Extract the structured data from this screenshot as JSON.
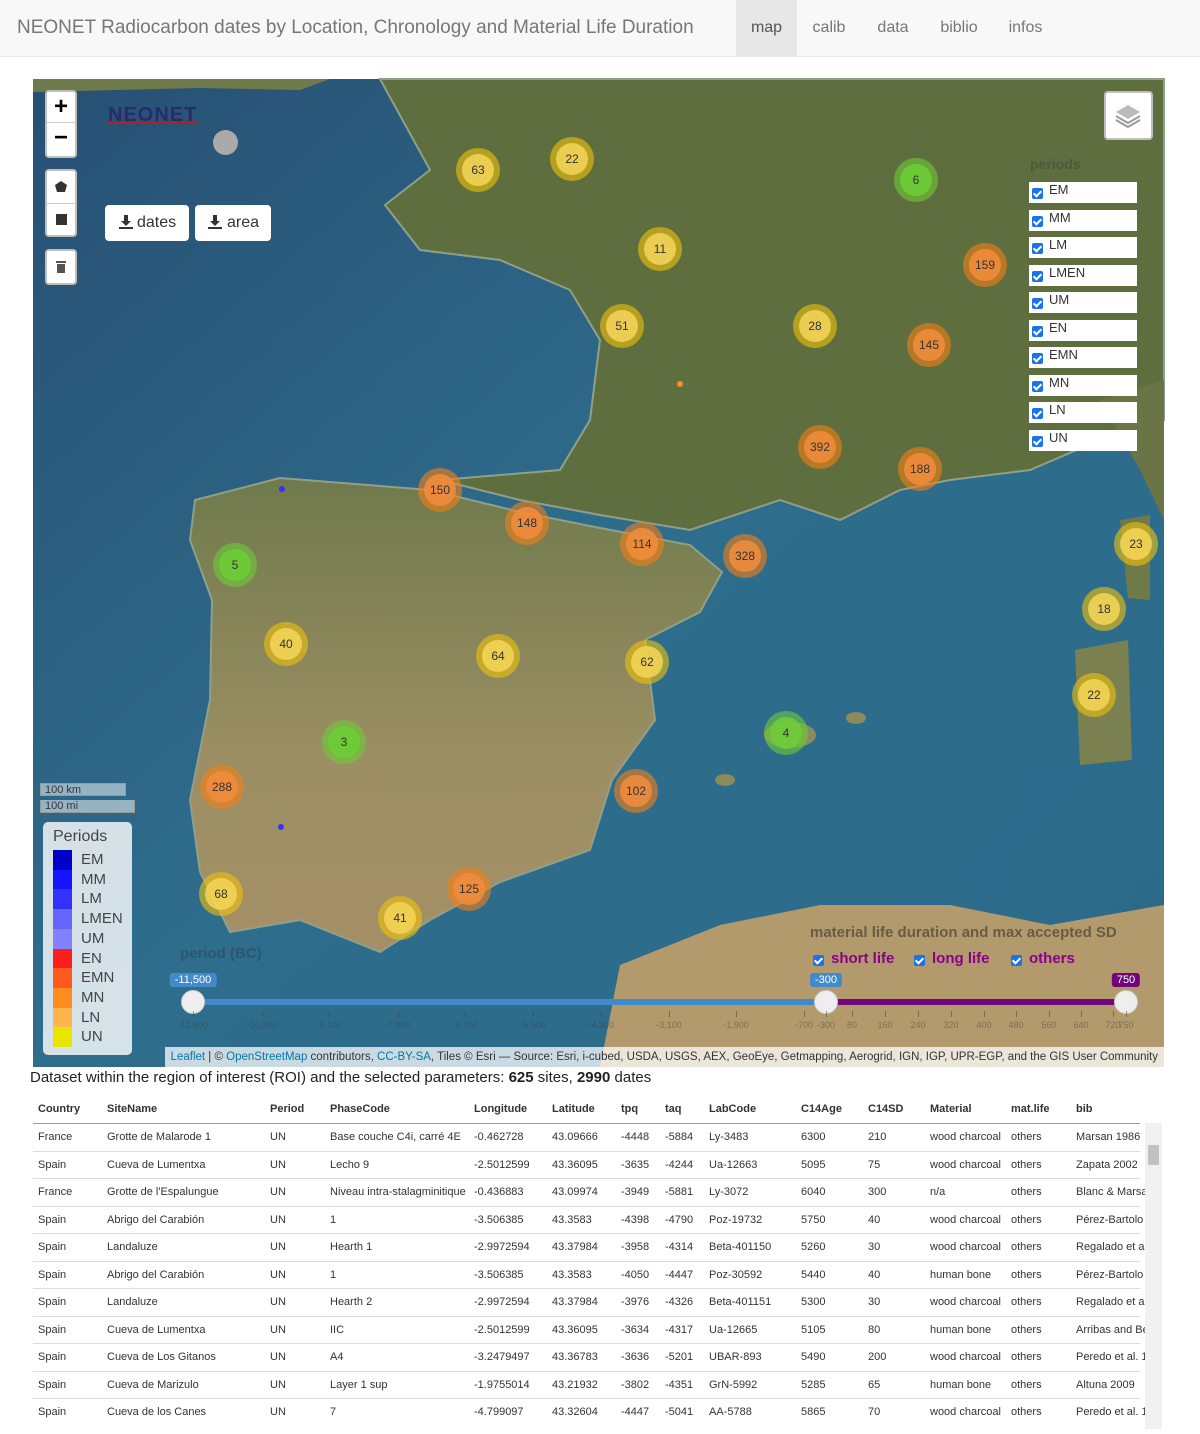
{
  "navbar": {
    "title": "NEONET Radiocarbon dates by Location, Chronology and Material Life Duration",
    "tabs": [
      "map",
      "calib",
      "data",
      "biblio",
      "infos"
    ]
  },
  "map": {
    "zoom_in": "+",
    "zoom_out": "−",
    "logo": "NEONET",
    "export_buttons": [
      "dates",
      "area"
    ],
    "clusters": [
      63,
      22,
      6,
      11,
      159,
      51,
      28,
      145,
      392,
      188,
      150,
      148,
      114,
      328,
      23,
      5,
      18,
      40,
      64,
      62,
      22,
      4,
      3,
      288,
      102,
      125,
      68,
      41
    ],
    "periods_filter": {
      "title": "periods",
      "items": [
        "EM",
        "MM",
        "LM",
        "LMEN",
        "UM",
        "EN",
        "EMN",
        "MN",
        "LN",
        "UN"
      ]
    },
    "legend": {
      "title": "Periods",
      "items": [
        {
          "label": "EM",
          "color": "#0000c8"
        },
        {
          "label": "MM",
          "color": "#1414ff"
        },
        {
          "label": "LM",
          "color": "#3232ff"
        },
        {
          "label": "LMEN",
          "color": "#6464ff"
        },
        {
          "label": "UM",
          "color": "#8282ff"
        },
        {
          "label": "EN",
          "color": "#ff1e1e"
        },
        {
          "label": "EMN",
          "color": "#ff5a1e"
        },
        {
          "label": "MN",
          "color": "#ff8c1e"
        },
        {
          "label": "LN",
          "color": "#ffb450"
        },
        {
          "label": "UN",
          "color": "#e6e600"
        }
      ]
    },
    "scale": [
      "100 km",
      "100 mi"
    ],
    "period_slider": {
      "title": "period (BC)",
      "min": "-11,500",
      "value": "-300",
      "max": "750",
      "ticks": [
        "-11,500",
        "-10,300",
        "-9,100",
        "-7,900",
        "-6,700",
        "-5,500",
        "-4,300",
        "-3,100",
        "-1,900",
        "-700",
        "-300",
        "80",
        "160",
        "240",
        "320",
        "400",
        "480",
        "560",
        "640",
        "720",
        "750"
      ]
    },
    "material_filter": {
      "title": "material life duration and max accepted SD",
      "options": [
        "short life",
        "long life",
        "others"
      ]
    },
    "attribution": [
      {
        "text": "Leaflet",
        "link": true
      },
      {
        "text": " | © ",
        "link": false
      },
      {
        "text": "OpenStreetMap",
        "link": true
      },
      {
        "text": " contributors, ",
        "link": false
      },
      {
        "text": "CC-BY-SA",
        "link": true
      },
      {
        "text": ", Tiles © Esri — Source: Esri, i-cubed, USDA, USGS, AEX, GeoEye, Getmapping, Aerogrid, IGN, IGP, UPR-EGP, and the GIS User Community",
        "link": false
      }
    ]
  },
  "summary": {
    "text": "Dataset within the region of interest (ROI) and the selected parameters: ",
    "sites": "625",
    "sites_text": " sites, ",
    "dates": "2990",
    "dates_text": " dates"
  },
  "table": {
    "columns": [
      "Country",
      "SiteName",
      "Period",
      "PhaseCode",
      "Longitude",
      "Latitude",
      "tpq",
      "taq",
      "LabCode",
      "C14Age",
      "C14SD",
      "Material",
      "mat.life",
      "bib"
    ],
    "rows": [
      [
        "France",
        "Grotte de Malarode 1",
        "UN",
        "Base couche C4i, carré 4E",
        "-0.462728",
        "43.09666",
        "-4448",
        "-5884",
        "Ly-3483",
        "6300",
        "210",
        "wood charcoal",
        "others",
        "Marsan 1986"
      ],
      [
        "Spain",
        "Cueva de Lumentxa",
        "UN",
        "Lecho 9",
        "-2.5012599",
        "43.36095",
        "-3635",
        "-4244",
        "Ua-12663",
        "5095",
        "75",
        "wood charcoal",
        "others",
        "Zapata 2002"
      ],
      [
        "France",
        "Grotte de l'Espalungue",
        "UN",
        "Niveau intra-stalagminitique",
        "-0.436883",
        "43.09974",
        "-3949",
        "-5881",
        "Ly-3072",
        "6040",
        "300",
        "n/a",
        "others",
        "Blanc & Marsa"
      ],
      [
        "Spain",
        "Abrigo del Carabión",
        "UN",
        "1",
        "-3.506385",
        "43.3583",
        "-4398",
        "-4790",
        "Poz-19732",
        "5750",
        "40",
        "wood charcoal",
        "others",
        "Pérez-Bartolo"
      ],
      [
        "Spain",
        "Landaluze",
        "UN",
        "Hearth 1",
        "-2.9972594",
        "43.37984",
        "-3958",
        "-4314",
        "Beta-401150",
        "5260",
        "30",
        "wood charcoal",
        "others",
        "Regalado et al"
      ],
      [
        "Spain",
        "Abrigo del Carabión",
        "UN",
        "1",
        "-3.506385",
        "43.3583",
        "-4050",
        "-4447",
        "Poz-30592",
        "5440",
        "40",
        "human bone",
        "others",
        "Pérez-Bartolo"
      ],
      [
        "Spain",
        "Landaluze",
        "UN",
        "Hearth 2",
        "-2.9972594",
        "43.37984",
        "-3976",
        "-4326",
        "Beta-401151",
        "5300",
        "30",
        "wood charcoal",
        "others",
        "Regalado et al"
      ],
      [
        "Spain",
        "Cueva de Lumentxa",
        "UN",
        "IIC",
        "-2.5012599",
        "43.36095",
        "-3634",
        "-4317",
        "Ua-12665",
        "5105",
        "80",
        "human bone",
        "others",
        "Arribas and Be"
      ],
      [
        "Spain",
        "Cueva de Los Gitanos",
        "UN",
        "A4",
        "-3.2479497",
        "43.36783",
        "-3636",
        "-5201",
        "UBAR-893",
        "5490",
        "200",
        "wood charcoal",
        "others",
        "Peredo et al. 1"
      ],
      [
        "Spain",
        "Cueva de Marizulo",
        "UN",
        "Layer 1 sup",
        "-1.9755014",
        "43.21932",
        "-3802",
        "-4351",
        "GrN-5992",
        "5285",
        "65",
        "human bone",
        "others",
        "Altuna 2009"
      ],
      [
        "Spain",
        "Cueva de los Canes",
        "UN",
        "7",
        "-4.799097",
        "43.32604",
        "-4447",
        "-5041",
        "AA-5788",
        "5865",
        "70",
        "wood charcoal",
        "others",
        "Peredo et al. 1"
      ]
    ]
  }
}
